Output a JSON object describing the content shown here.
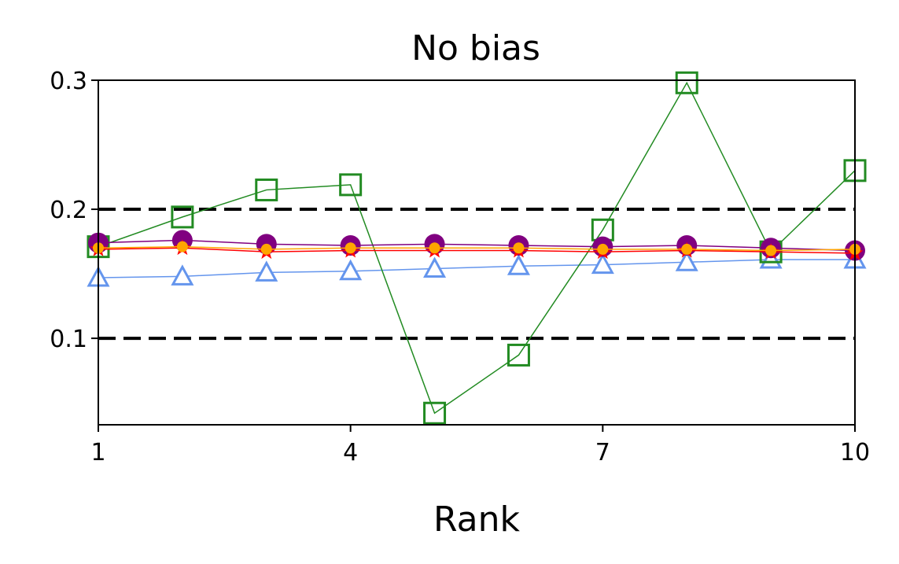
{
  "chart_data": {
    "type": "line",
    "title": "No bias",
    "xlabel": "Rank",
    "ylabel": "",
    "xlim": [
      1,
      10
    ],
    "ylim": [
      0.033,
      0.3
    ],
    "xticks": [
      "1",
      "4",
      "7",
      "10"
    ],
    "yticks": [
      "0.1",
      "0.2",
      "0.3"
    ],
    "x": [
      1,
      2,
      3,
      4,
      5,
      6,
      7,
      8,
      9,
      10
    ],
    "reference_lines": [
      0.2,
      0.1
    ],
    "grid": false,
    "series": [
      {
        "marker": "square",
        "color": "#228b22",
        "values": [
          0.171,
          0.194,
          0.215,
          0.219,
          0.042,
          0.087,
          0.184,
          0.298,
          0.167,
          0.23
        ]
      },
      {
        "marker": "circle",
        "color": "#800080",
        "values": [
          0.174,
          0.176,
          0.173,
          0.172,
          0.173,
          0.172,
          0.171,
          0.172,
          0.17,
          0.168
        ]
      },
      {
        "marker": "star",
        "color": "#ff0000",
        "values": [
          0.169,
          0.17,
          0.167,
          0.168,
          0.168,
          0.168,
          0.167,
          0.168,
          0.167,
          0.166
        ]
      },
      {
        "marker": "circle-small",
        "color": "#ffa500",
        "values": [
          0.17,
          0.171,
          0.169,
          0.17,
          0.17,
          0.17,
          0.169,
          0.169,
          0.168,
          0.169
        ]
      },
      {
        "marker": "triangle",
        "color": "#6495ed",
        "values": [
          0.147,
          0.148,
          0.151,
          0.152,
          0.154,
          0.156,
          0.157,
          0.159,
          0.161,
          0.161
        ]
      }
    ]
  }
}
